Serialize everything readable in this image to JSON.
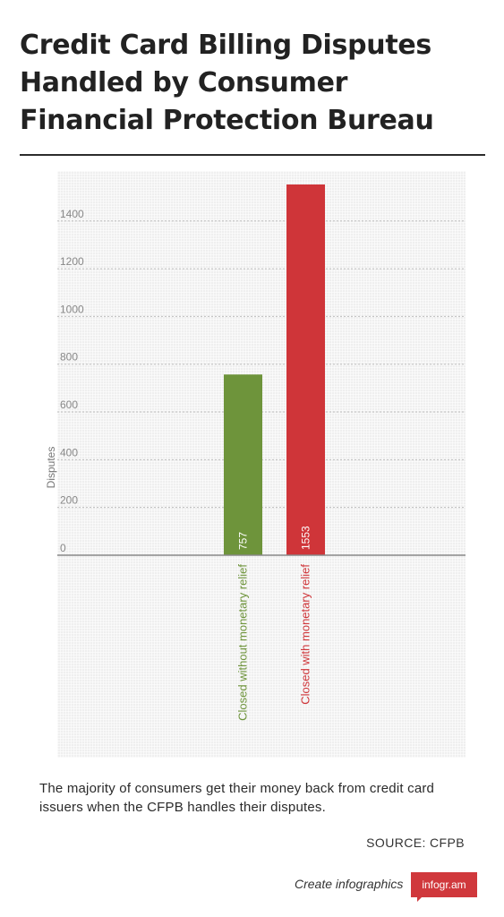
{
  "title": "Credit Card Billing Disputes Handled by Consumer Financial Protection Bureau",
  "description": "The majority of consumers get their money back from credit card issuers when the CFPB handles their disputes.",
  "source": "SOURCE: CFPB",
  "footer": {
    "cta": "Create infographics",
    "badge": "infogr.am"
  },
  "colors": {
    "green": "#6e943b",
    "red": "#cf3539"
  },
  "chart_data": {
    "type": "bar",
    "ylabel": "Disputes",
    "ylim": [
      0,
      1553
    ],
    "yticks": [
      0,
      200,
      400,
      600,
      800,
      1000,
      1200,
      1400
    ],
    "grid": true,
    "categories": [
      "Closed without monetary relief",
      "Closed with monetary relief"
    ],
    "values": [
      757,
      1553
    ],
    "bar_colors": [
      "#6e943b",
      "#cf3539"
    ]
  }
}
